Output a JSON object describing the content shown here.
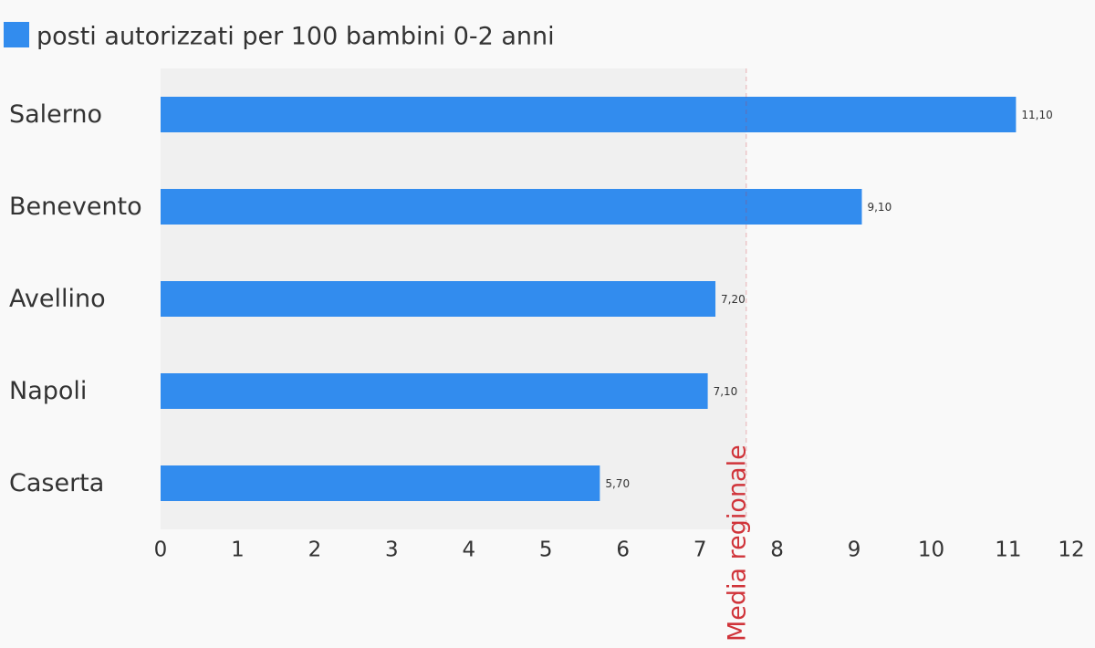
{
  "chart_data": {
    "type": "bar",
    "orientation": "horizontal",
    "categories": [
      "Salerno",
      "Benevento",
      "Avellino",
      "Napoli",
      "Caserta"
    ],
    "series": [
      {
        "name": "posti autorizzati per 100 bambini 0-2 anni",
        "color": "#328cee",
        "values": [
          11.1,
          9.1,
          7.2,
          7.1,
          5.7
        ],
        "value_labels": [
          "11,10",
          "9,10",
          "7,20",
          "7,10",
          "5,70"
        ]
      }
    ],
    "xlim": [
      0,
      12
    ],
    "xticks": [
      0,
      1,
      2,
      3,
      4,
      5,
      6,
      7,
      8,
      9,
      10,
      11,
      12
    ],
    "annotations": [
      {
        "value": 7.6,
        "label": "Media regionale",
        "color": "#d0343a"
      }
    ]
  }
}
